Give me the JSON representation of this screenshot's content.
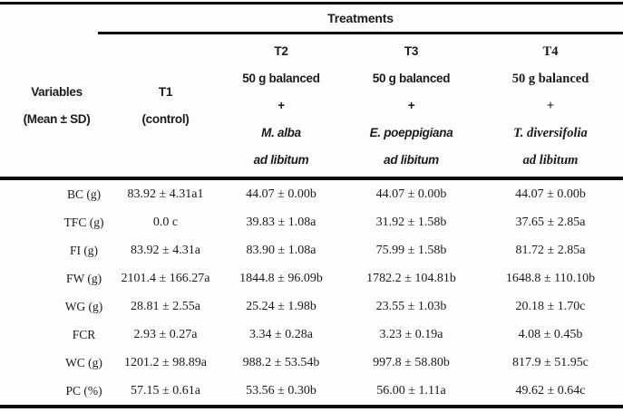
{
  "page": {
    "background": "#fdfdfd",
    "text_color": "#1b1b1b",
    "rule_color": "#0a0a0a"
  },
  "header": {
    "treatments": "Treatments",
    "variables": [
      "Variables",
      "(Mean ± SD)"
    ],
    "t1": [
      "T1",
      "(control)"
    ],
    "t2": [
      "T2",
      "50 g balanced",
      "+",
      "M. alba",
      "ad libitum"
    ],
    "t3": [
      "T3",
      "50 g balanced",
      "+",
      "E. poeppigiana",
      "ad libitum"
    ],
    "t4": [
      "T4",
      "50 g balanced",
      "+",
      "T. diversifolia",
      "ad libitum"
    ]
  },
  "rows": [
    {
      "label": "BC (g)",
      "values": [
        "83.92 ± 4.31a1",
        "44.07 ± 0.00b",
        "44.07 ± 0.00b",
        "44.07 ± 0.00b"
      ]
    },
    {
      "label": "TFC (g)",
      "values": [
        "0.0 c",
        "39.83 ± 1.08a",
        "31.92 ± 1.58b",
        "37.65 ± 2.85a"
      ]
    },
    {
      "label": "FI (g)",
      "values": [
        "83.92 ± 4.31a",
        "83.90 ± 1.08a",
        "75.99 ± 1.58b",
        "81.72 ± 2.85a"
      ]
    },
    {
      "label": "FW (g)",
      "values": [
        "2101.4 ± 166.27a",
        "1844.8 ± 96.09b",
        "1782.2 ± 104.81b",
        "1648.8 ± 110.10b"
      ]
    },
    {
      "label": "WG (g)",
      "values": [
        "28.81 ± 2.55a",
        "25.24 ± 1.98b",
        "23.55 ± 1.03b",
        "20.18 ± 1.70c"
      ]
    },
    {
      "label": "FCR",
      "values": [
        "2.93 ± 0.27a",
        "3.34 ± 0.28a",
        "3.23 ± 0.19a",
        "4.08 ± 0.45b"
      ]
    },
    {
      "label": "WC (g)",
      "values": [
        "1201.2 ± 98.89a",
        "988.2 ± 53.54b",
        "997.8 ± 58.80b",
        "817.9 ± 51.95c"
      ]
    },
    {
      "label": "PC (%)",
      "values": [
        "57.15 ± 0.61a",
        "53.56 ± 0.30b",
        "56.00 ± 1.11a",
        "49.62 ± 0.64c"
      ]
    }
  ]
}
